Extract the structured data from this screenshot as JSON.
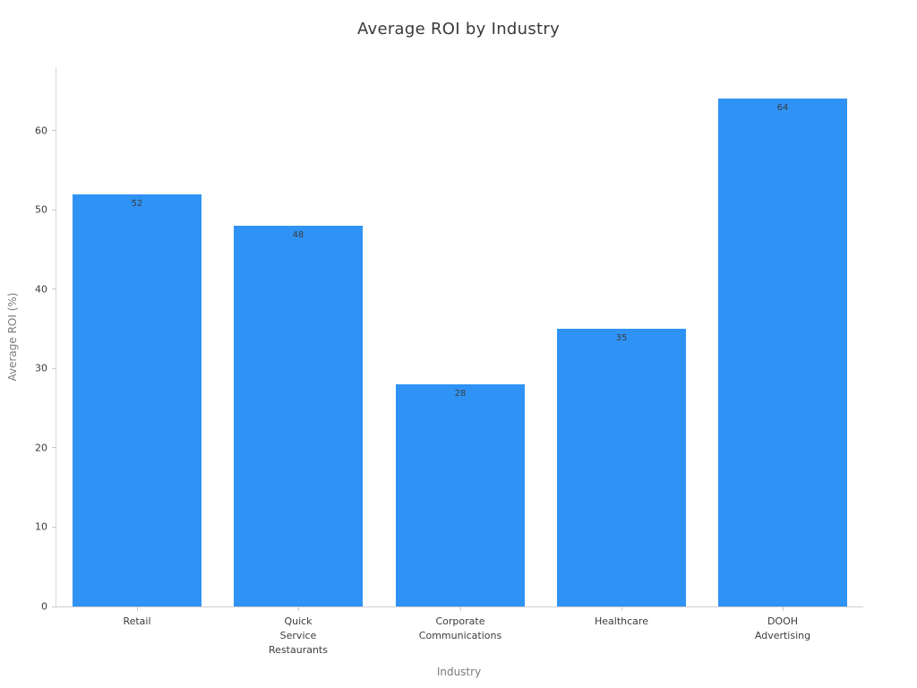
{
  "chart_data": {
    "type": "bar",
    "title": "Average ROI by Industry",
    "xlabel": "Industry",
    "ylabel": "Average ROI (%)",
    "categories": [
      "Retail",
      "Quick Service Restaurants",
      "Corporate Communications",
      "Healthcare",
      "DOOH Advertising"
    ],
    "category_label_lines": [
      [
        "Retail"
      ],
      [
        "Quick",
        "Service",
        "Restaurants"
      ],
      [
        "Corporate",
        "Communications"
      ],
      [
        "Healthcare"
      ],
      [
        "DOOH",
        "Advertising"
      ]
    ],
    "values": [
      52,
      48,
      28,
      35,
      64
    ],
    "value_labels": [
      "52",
      "48",
      "28",
      "35",
      "64"
    ],
    "yticks": [
      0,
      10,
      20,
      30,
      40,
      50,
      60
    ],
    "ylim": [
      0,
      68
    ],
    "grid": false,
    "legend": null,
    "bar_color": "#2f93f6",
    "colors": {
      "bar": "#2f93f6",
      "title_text": "#3a3a3a",
      "tick_text": "#3b3b3b",
      "axis_title_text": "#7b7b7b",
      "axis_line": "#d2d2d2",
      "value_label_text": "#3d3d3d",
      "background": "#ffffff"
    }
  }
}
